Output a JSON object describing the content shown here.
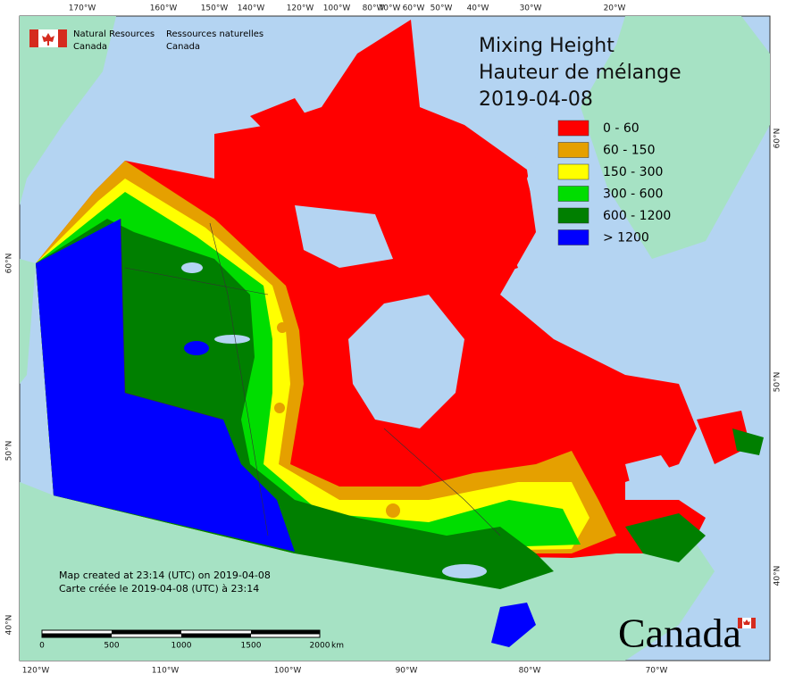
{
  "agency": {
    "en": [
      "Natural Resources",
      "Canada"
    ],
    "fr": [
      "Ressources naturelles",
      "Canada"
    ]
  },
  "title": [
    "Mixing Height",
    "Hauteur de mélange",
    "2019-04-08"
  ],
  "legend": [
    {
      "label": "0 - 60",
      "color": "#ff0000"
    },
    {
      "label": "60 - 150",
      "color": "#e5a000"
    },
    {
      "label": "150 - 300",
      "color": "#ffff00"
    },
    {
      "label": "300 - 600",
      "color": "#00dd00"
    },
    {
      "label": "600 - 1200",
      "color": "#007f00"
    },
    {
      "label": "> 1200",
      "color": "#0000ff"
    }
  ],
  "graticule": {
    "top": [
      "170°W",
      "160°W",
      "150°W",
      "140°W",
      "120°W",
      "100°W",
      "80°W",
      "70°W",
      "60°W",
      "50°W",
      "40°W",
      "30°W",
      "20°W"
    ],
    "bottom": [
      "120°W",
      "110°W",
      "100°W",
      "90°W",
      "80°W",
      "70°W"
    ],
    "left": [
      "60°N",
      "50°N",
      "40°N"
    ],
    "right": [
      "60°N",
      "50°N",
      "40°N"
    ]
  },
  "footer": [
    "Map created at 23:14 (UTC) on 2019-04-08",
    "Carte créée le 2019-04-08 (UTC) à 23:14"
  ],
  "scale": {
    "labels": [
      "0",
      "500",
      "1000",
      "1500",
      "2000"
    ],
    "unit": "km"
  },
  "wordmark": "Canada"
}
